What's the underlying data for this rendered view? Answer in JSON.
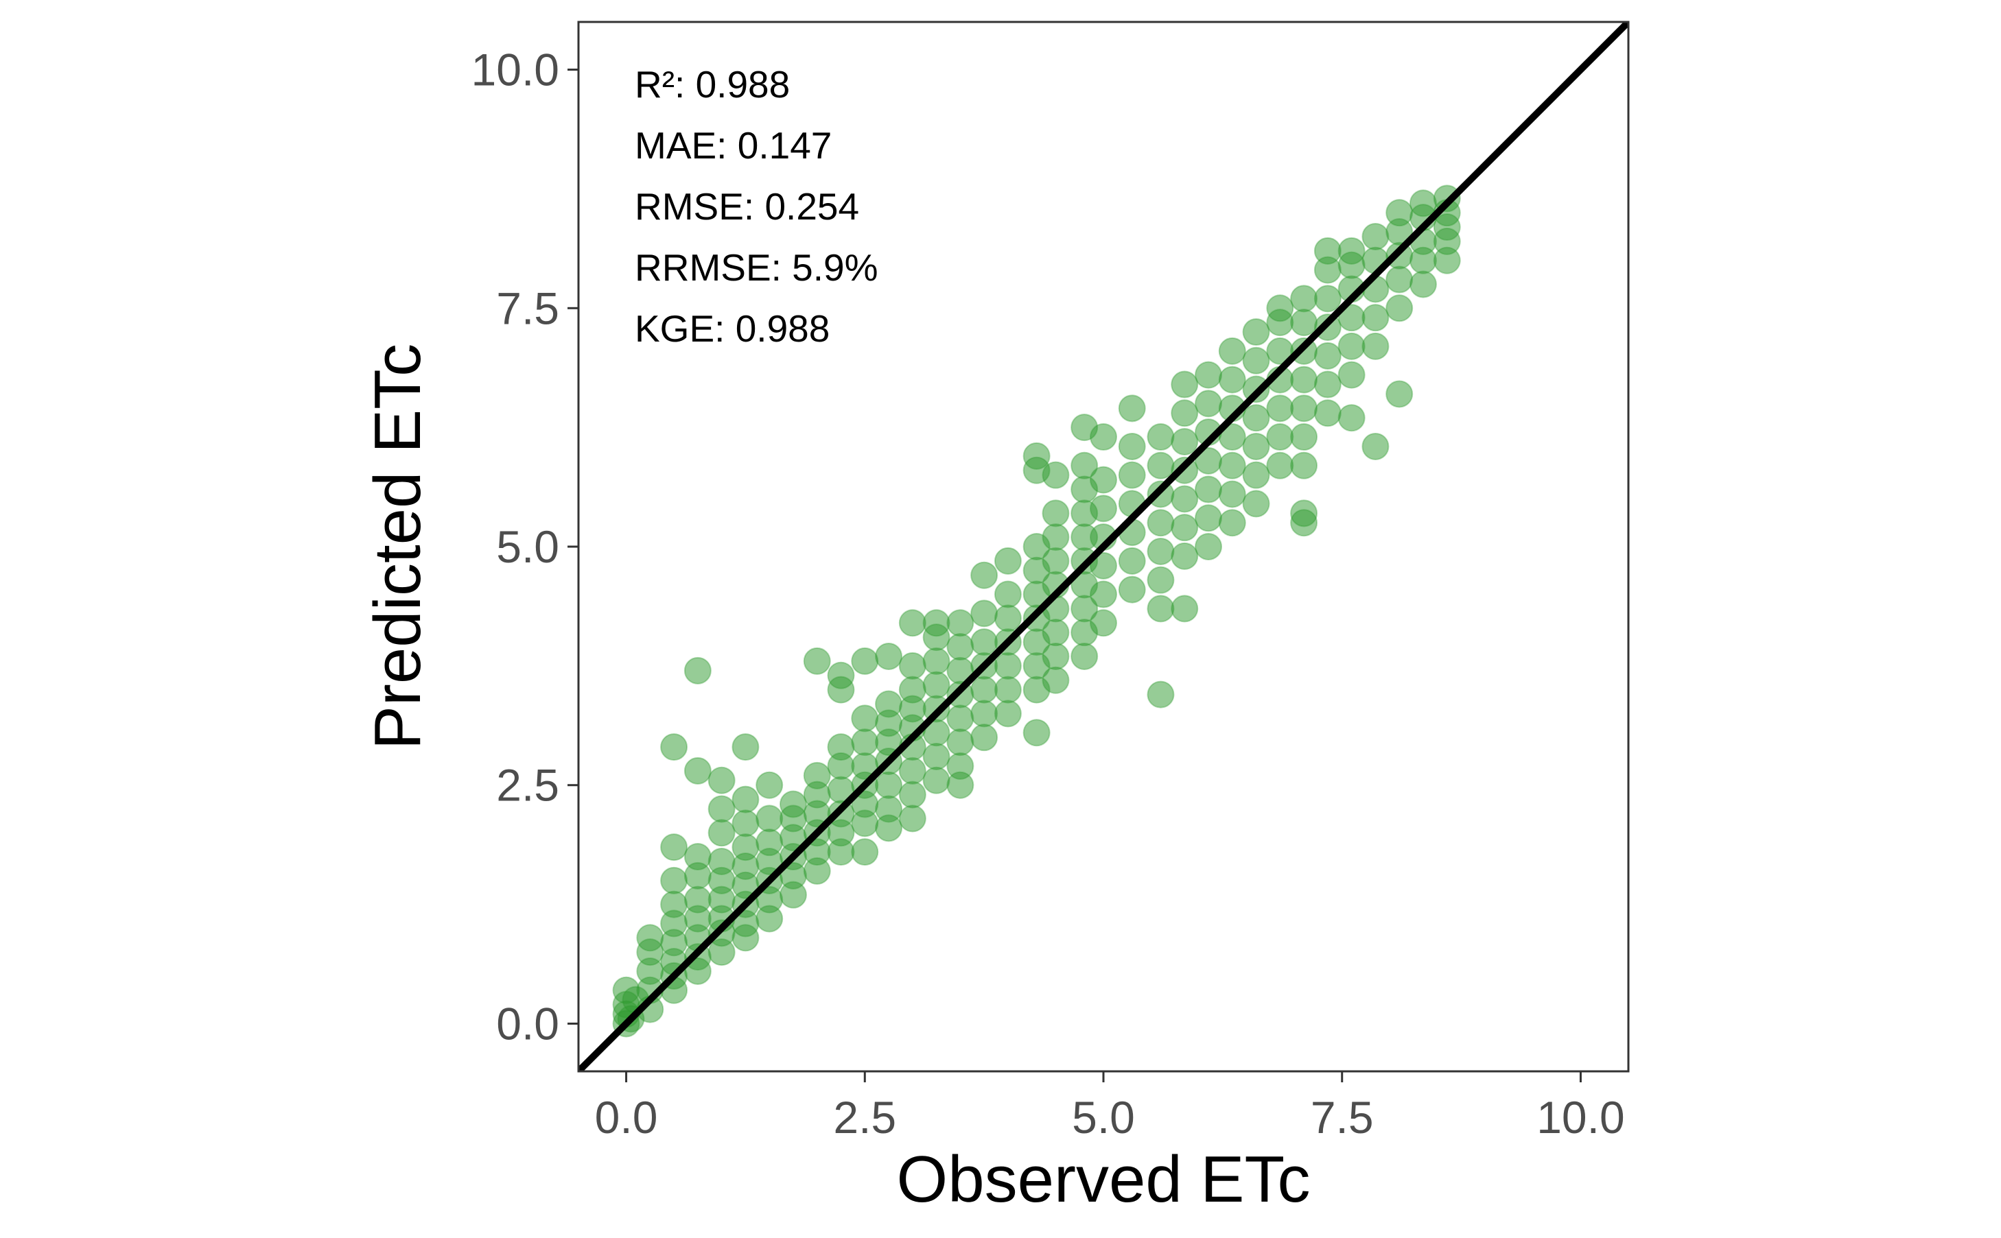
{
  "chart_data": {
    "type": "scatter",
    "xlabel": "Observed ETc",
    "ylabel": "Predicted ETc",
    "xlim": [
      -0.5,
      10.5
    ],
    "ylim": [
      -0.5,
      10.5
    ],
    "x_ticks": [
      "0.0",
      "2.5",
      "5.0",
      "7.5",
      "10.0"
    ],
    "y_ticks": [
      "0.0",
      "2.5",
      "5.0",
      "7.5",
      "10.0"
    ],
    "x_tick_values": [
      0,
      2.5,
      5,
      7.5,
      10
    ],
    "y_tick_values": [
      0,
      2.5,
      5,
      7.5,
      10
    ],
    "grid": false,
    "reference_line": "1:1",
    "point_color": "#2e9a2e",
    "point_opacity": 0.5,
    "statistics": [
      "R²: 0.988",
      "MAE: 0.147",
      "RMSE: 0.254",
      "RRMSE: 5.9%",
      "KGE: 0.988"
    ],
    "points": [
      [
        0,
        0
      ],
      [
        0,
        0.1
      ],
      [
        0,
        0.2
      ],
      [
        0,
        0.35
      ],
      [
        0.05,
        0.05
      ],
      [
        0.1,
        0.25
      ],
      [
        0.25,
        0.15
      ],
      [
        0.25,
        0.35
      ],
      [
        0.25,
        0.55
      ],
      [
        0.25,
        0.75
      ],
      [
        0.25,
        0.9
      ],
      [
        0.5,
        0.35
      ],
      [
        0.5,
        0.5
      ],
      [
        0.5,
        0.65
      ],
      [
        0.5,
        0.85
      ],
      [
        0.5,
        1.05
      ],
      [
        0.5,
        1.25
      ],
      [
        0.5,
        1.5
      ],
      [
        0.5,
        1.85
      ],
      [
        0.5,
        2.9
      ],
      [
        0.75,
        0.55
      ],
      [
        0.75,
        0.7
      ],
      [
        0.75,
        0.9
      ],
      [
        0.75,
        1.1
      ],
      [
        0.75,
        1.3
      ],
      [
        0.75,
        1.55
      ],
      [
        0.75,
        1.75
      ],
      [
        0.75,
        2.65
      ],
      [
        0.75,
        3.7
      ],
      [
        1.0,
        0.75
      ],
      [
        1.0,
        0.95
      ],
      [
        1.0,
        1.1
      ],
      [
        1.0,
        1.3
      ],
      [
        1.0,
        1.5
      ],
      [
        1.0,
        1.7
      ],
      [
        1.0,
        2.0
      ],
      [
        1.0,
        2.25
      ],
      [
        1.0,
        2.55
      ],
      [
        1.25,
        0.9
      ],
      [
        1.25,
        1.05
      ],
      [
        1.25,
        1.25
      ],
      [
        1.25,
        1.45
      ],
      [
        1.25,
        1.65
      ],
      [
        1.25,
        1.85
      ],
      [
        1.25,
        2.1
      ],
      [
        1.25,
        2.35
      ],
      [
        1.25,
        2.9
      ],
      [
        1.5,
        1.1
      ],
      [
        1.5,
        1.3
      ],
      [
        1.5,
        1.5
      ],
      [
        1.5,
        1.7
      ],
      [
        1.5,
        1.9
      ],
      [
        1.5,
        2.15
      ],
      [
        1.5,
        2.5
      ],
      [
        1.75,
        1.35
      ],
      [
        1.75,
        1.55
      ],
      [
        1.75,
        1.75
      ],
      [
        1.75,
        1.95
      ],
      [
        1.75,
        2.15
      ],
      [
        1.75,
        2.3
      ],
      [
        2.0,
        1.6
      ],
      [
        2.0,
        1.8
      ],
      [
        2.0,
        2.0
      ],
      [
        2.0,
        2.2
      ],
      [
        2.0,
        2.4
      ],
      [
        2.0,
        2.6
      ],
      [
        2.0,
        3.8
      ],
      [
        2.25,
        1.8
      ],
      [
        2.25,
        2.0
      ],
      [
        2.25,
        2.2
      ],
      [
        2.25,
        2.45
      ],
      [
        2.25,
        2.7
      ],
      [
        2.25,
        2.9
      ],
      [
        2.25,
        3.5
      ],
      [
        2.25,
        3.65
      ],
      [
        2.5,
        1.8
      ],
      [
        2.5,
        2.1
      ],
      [
        2.5,
        2.3
      ],
      [
        2.5,
        2.5
      ],
      [
        2.5,
        2.7
      ],
      [
        2.5,
        2.95
      ],
      [
        2.5,
        3.2
      ],
      [
        2.5,
        3.8
      ],
      [
        2.75,
        2.05
      ],
      [
        2.75,
        2.25
      ],
      [
        2.75,
        2.5
      ],
      [
        2.75,
        2.75
      ],
      [
        2.75,
        2.95
      ],
      [
        2.75,
        3.15
      ],
      [
        2.75,
        3.35
      ],
      [
        2.75,
        3.85
      ],
      [
        3.0,
        2.15
      ],
      [
        3.0,
        2.4
      ],
      [
        3.0,
        2.65
      ],
      [
        3.0,
        2.9
      ],
      [
        3.0,
        3.1
      ],
      [
        3.0,
        3.3
      ],
      [
        3.0,
        3.5
      ],
      [
        3.0,
        3.75
      ],
      [
        3.0,
        4.2
      ],
      [
        3.25,
        2.55
      ],
      [
        3.25,
        2.8
      ],
      [
        3.25,
        3.05
      ],
      [
        3.25,
        3.3
      ],
      [
        3.25,
        3.55
      ],
      [
        3.25,
        3.8
      ],
      [
        3.25,
        4.05
      ],
      [
        3.25,
        4.2
      ],
      [
        3.5,
        2.5
      ],
      [
        3.5,
        2.7
      ],
      [
        3.5,
        2.95
      ],
      [
        3.5,
        3.2
      ],
      [
        3.5,
        3.45
      ],
      [
        3.5,
        3.7
      ],
      [
        3.5,
        3.95
      ],
      [
        3.5,
        4.2
      ],
      [
        3.75,
        3.0
      ],
      [
        3.75,
        3.25
      ],
      [
        3.75,
        3.5
      ],
      [
        3.75,
        3.75
      ],
      [
        3.75,
        4.0
      ],
      [
        3.75,
        4.3
      ],
      [
        3.75,
        4.7
      ],
      [
        4.0,
        3.25
      ],
      [
        4.0,
        3.5
      ],
      [
        4.0,
        3.75
      ],
      [
        4.0,
        4.0
      ],
      [
        4.0,
        4.25
      ],
      [
        4.0,
        4.5
      ],
      [
        4.0,
        4.85
      ],
      [
        4.3,
        3.05
      ],
      [
        4.3,
        3.5
      ],
      [
        4.3,
        3.75
      ],
      [
        4.3,
        4.0
      ],
      [
        4.3,
        4.25
      ],
      [
        4.3,
        4.5
      ],
      [
        4.3,
        4.75
      ],
      [
        4.3,
        5.0
      ],
      [
        4.3,
        5.8
      ],
      [
        4.3,
        5.95
      ],
      [
        4.5,
        3.6
      ],
      [
        4.5,
        3.85
      ],
      [
        4.5,
        4.1
      ],
      [
        4.5,
        4.35
      ],
      [
        4.5,
        4.6
      ],
      [
        4.5,
        4.85
      ],
      [
        4.5,
        5.1
      ],
      [
        4.5,
        5.35
      ],
      [
        4.5,
        5.75
      ],
      [
        4.8,
        3.85
      ],
      [
        4.8,
        4.1
      ],
      [
        4.8,
        4.35
      ],
      [
        4.8,
        4.6
      ],
      [
        4.8,
        4.85
      ],
      [
        4.8,
        5.1
      ],
      [
        4.8,
        5.35
      ],
      [
        4.8,
        5.6
      ],
      [
        4.8,
        5.85
      ],
      [
        4.8,
        6.25
      ],
      [
        5.0,
        4.2
      ],
      [
        5.0,
        4.5
      ],
      [
        5.0,
        4.8
      ],
      [
        5.0,
        5.1
      ],
      [
        5.0,
        5.4
      ],
      [
        5.0,
        5.7
      ],
      [
        5.0,
        6.15
      ],
      [
        5.3,
        4.55
      ],
      [
        5.3,
        4.85
      ],
      [
        5.3,
        5.15
      ],
      [
        5.3,
        5.45
      ],
      [
        5.3,
        5.75
      ],
      [
        5.3,
        6.05
      ],
      [
        5.3,
        6.45
      ],
      [
        5.6,
        3.45
      ],
      [
        5.6,
        4.35
      ],
      [
        5.6,
        4.65
      ],
      [
        5.6,
        4.95
      ],
      [
        5.6,
        5.25
      ],
      [
        5.6,
        5.55
      ],
      [
        5.6,
        5.85
      ],
      [
        5.6,
        6.15
      ],
      [
        5.85,
        4.35
      ],
      [
        5.85,
        4.9
      ],
      [
        5.85,
        5.2
      ],
      [
        5.85,
        5.5
      ],
      [
        5.85,
        5.8
      ],
      [
        5.85,
        6.1
      ],
      [
        5.85,
        6.4
      ],
      [
        5.85,
        6.7
      ],
      [
        6.1,
        5.0
      ],
      [
        6.1,
        5.3
      ],
      [
        6.1,
        5.6
      ],
      [
        6.1,
        5.9
      ],
      [
        6.1,
        6.2
      ],
      [
        6.1,
        6.5
      ],
      [
        6.1,
        6.8
      ],
      [
        6.35,
        5.25
      ],
      [
        6.35,
        5.55
      ],
      [
        6.35,
        5.85
      ],
      [
        6.35,
        6.15
      ],
      [
        6.35,
        6.45
      ],
      [
        6.35,
        6.75
      ],
      [
        6.35,
        7.05
      ],
      [
        6.6,
        5.45
      ],
      [
        6.6,
        5.75
      ],
      [
        6.6,
        6.05
      ],
      [
        6.6,
        6.35
      ],
      [
        6.6,
        6.65
      ],
      [
        6.6,
        6.95
      ],
      [
        6.6,
        7.25
      ],
      [
        6.85,
        5.85
      ],
      [
        6.85,
        6.15
      ],
      [
        6.85,
        6.45
      ],
      [
        6.85,
        6.75
      ],
      [
        6.85,
        7.05
      ],
      [
        6.85,
        7.35
      ],
      [
        6.85,
        7.5
      ],
      [
        7.1,
        5.25
      ],
      [
        7.1,
        5.35
      ],
      [
        7.1,
        5.85
      ],
      [
        7.1,
        6.15
      ],
      [
        7.1,
        6.45
      ],
      [
        7.1,
        6.75
      ],
      [
        7.1,
        7.05
      ],
      [
        7.1,
        7.35
      ],
      [
        7.1,
        7.6
      ],
      [
        7.35,
        6.4
      ],
      [
        7.35,
        6.7
      ],
      [
        7.35,
        7.0
      ],
      [
        7.35,
        7.3
      ],
      [
        7.35,
        7.6
      ],
      [
        7.35,
        7.9
      ],
      [
        7.35,
        8.1
      ],
      [
        7.6,
        6.35
      ],
      [
        7.6,
        6.8
      ],
      [
        7.6,
        7.1
      ],
      [
        7.6,
        7.4
      ],
      [
        7.6,
        7.7
      ],
      [
        7.6,
        7.95
      ],
      [
        7.6,
        8.1
      ],
      [
        7.85,
        6.05
      ],
      [
        7.85,
        7.1
      ],
      [
        7.85,
        7.4
      ],
      [
        7.85,
        7.7
      ],
      [
        7.85,
        8.0
      ],
      [
        7.85,
        8.25
      ],
      [
        8.1,
        6.6
      ],
      [
        8.1,
        7.5
      ],
      [
        8.1,
        7.8
      ],
      [
        8.1,
        8.05
      ],
      [
        8.1,
        8.3
      ],
      [
        8.1,
        8.5
      ],
      [
        8.35,
        7.75
      ],
      [
        8.35,
        8.0
      ],
      [
        8.35,
        8.2
      ],
      [
        8.35,
        8.45
      ],
      [
        8.35,
        8.6
      ],
      [
        8.6,
        8.0
      ],
      [
        8.6,
        8.2
      ],
      [
        8.6,
        8.35
      ],
      [
        8.6,
        8.5
      ],
      [
        8.6,
        8.65
      ]
    ]
  }
}
